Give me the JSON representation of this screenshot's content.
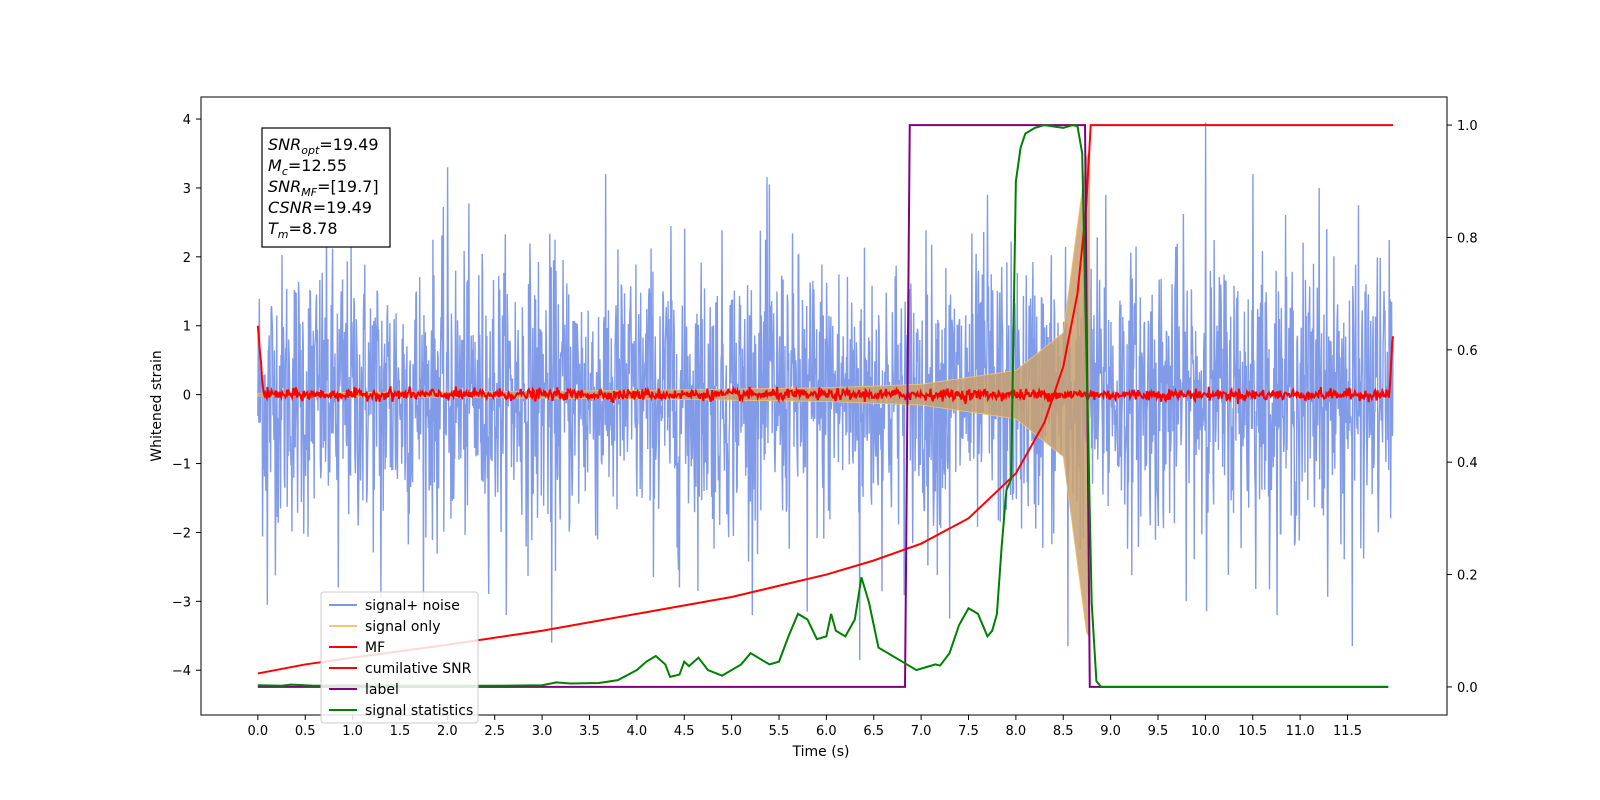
{
  "chart_data": {
    "type": "line",
    "title": "",
    "xlabel": "Time (s)",
    "ylabel": "Whitened strain",
    "xlim": [
      -0.6,
      12.55
    ],
    "ylim": [
      -4.65,
      4.32
    ],
    "y2lim": [
      -0.05,
      1.05
    ],
    "x_ticks": [
      "0.0",
      "0.5",
      "1.0",
      "1.5",
      "2.0",
      "2.5",
      "3.0",
      "3.5",
      "4.0",
      "4.5",
      "5.0",
      "5.5",
      "6.0",
      "6.5",
      "7.0",
      "7.5",
      "8.0",
      "8.5",
      "9.0",
      "9.5",
      "10.0",
      "10.5",
      "11.0",
      "11.5"
    ],
    "y_ticks": [
      "4",
      "3",
      "2",
      "1",
      "0",
      "−1",
      "−2",
      "−3",
      "−4"
    ],
    "y2_ticks": [
      "1.0",
      "0.8",
      "0.6",
      "0.4",
      "0.2",
      "0.0"
    ],
    "grid": false,
    "legend_position": "lower-left",
    "info_box": [
      {
        "sym": "SNR",
        "sub": "opt",
        "value": "=19.49"
      },
      {
        "sym": "M",
        "sub": "c",
        "value": "=12.55"
      },
      {
        "sym": "SNR",
        "sub": "MF",
        "value": "=[19.7]"
      },
      {
        "sym": "CSNR",
        "sub": "",
        "value": "=19.49"
      },
      {
        "sym": "T",
        "sub": "m",
        "value": "=8.78"
      }
    ],
    "series": [
      {
        "name": "signal+ noise",
        "color": "#7b96e8",
        "axis": "left",
        "noise_std": 1.0,
        "t_start": 0.0,
        "t_end": 11.98,
        "peaks": [
          [
            0.1,
            -3.05
          ],
          [
            0.85,
            -2.8
          ],
          [
            1.3,
            -2.95
          ],
          [
            2.0,
            3.3
          ],
          [
            3.1,
            -3.6
          ],
          [
            4.45,
            -2.8
          ],
          [
            5.4,
            3.05
          ],
          [
            5.8,
            -3.15
          ],
          [
            6.35,
            -3.85
          ],
          [
            7.3,
            -3.25
          ],
          [
            7.7,
            2.9
          ],
          [
            8.55,
            -3.65
          ],
          [
            8.95,
            2.9
          ],
          [
            10.0,
            3.95
          ],
          [
            10.5,
            3.2
          ],
          [
            11.55,
            -3.65
          ],
          [
            11.2,
            3.0
          ]
        ]
      },
      {
        "name": "signal only",
        "color": "#f5c46e",
        "axis": "left",
        "chirp_amplitude_at": [
          [
            0.0,
            0.02
          ],
          [
            4.0,
            0.06
          ],
          [
            6.0,
            0.1
          ],
          [
            7.0,
            0.15
          ],
          [
            8.0,
            0.35
          ],
          [
            8.5,
            0.9
          ],
          [
            8.75,
            3.5
          ]
        ],
        "merger_time": 8.78
      },
      {
        "name": "MF",
        "color": "#ff0000",
        "axis": "left",
        "noise_std": 0.04,
        "start_value": 1.0,
        "end_value": 0.88
      },
      {
        "name": "cumilative SNR",
        "color": "#ff0000",
        "axis": "right",
        "points": [
          [
            0.0,
            0.024
          ],
          [
            0.5,
            0.04
          ],
          [
            1.0,
            0.052
          ],
          [
            2.0,
            0.075
          ],
          [
            3.0,
            0.1
          ],
          [
            4.0,
            0.13
          ],
          [
            5.0,
            0.16
          ],
          [
            5.5,
            0.18
          ],
          [
            6.0,
            0.2
          ],
          [
            6.5,
            0.225
          ],
          [
            7.0,
            0.255
          ],
          [
            7.5,
            0.3
          ],
          [
            8.0,
            0.38
          ],
          [
            8.3,
            0.47
          ],
          [
            8.5,
            0.57
          ],
          [
            8.65,
            0.7
          ],
          [
            8.74,
            0.85
          ],
          [
            8.79,
            1.0
          ],
          [
            11.98,
            1.0
          ]
        ]
      },
      {
        "name": "label",
        "color": "#800080",
        "axis": "right",
        "points": [
          [
            0.0,
            0.0
          ],
          [
            6.83,
            0.0
          ],
          [
            6.88,
            1.0
          ],
          [
            8.73,
            1.0
          ],
          [
            8.78,
            0.0
          ],
          [
            11.93,
            0.0
          ]
        ]
      },
      {
        "name": "signal statistics",
        "color": "#008000",
        "axis": "right",
        "points": [
          [
            0.0,
            0.003
          ],
          [
            0.25,
            0.002
          ],
          [
            0.35,
            0.004
          ],
          [
            0.6,
            0.002
          ],
          [
            1.0,
            0.003
          ],
          [
            1.5,
            0.002
          ],
          [
            2.0,
            0.002
          ],
          [
            2.5,
            0.002
          ],
          [
            3.0,
            0.003
          ],
          [
            3.15,
            0.008
          ],
          [
            3.3,
            0.006
          ],
          [
            3.6,
            0.007
          ],
          [
            3.8,
            0.012
          ],
          [
            4.0,
            0.03
          ],
          [
            4.1,
            0.045
          ],
          [
            4.2,
            0.055
          ],
          [
            4.3,
            0.04
          ],
          [
            4.35,
            0.018
          ],
          [
            4.45,
            0.022
          ],
          [
            4.5,
            0.045
          ],
          [
            4.55,
            0.037
          ],
          [
            4.65,
            0.052
          ],
          [
            4.75,
            0.03
          ],
          [
            4.9,
            0.02
          ],
          [
            5.0,
            0.03
          ],
          [
            5.1,
            0.04
          ],
          [
            5.2,
            0.06
          ],
          [
            5.3,
            0.05
          ],
          [
            5.4,
            0.04
          ],
          [
            5.5,
            0.045
          ],
          [
            5.6,
            0.09
          ],
          [
            5.7,
            0.13
          ],
          [
            5.8,
            0.12
          ],
          [
            5.9,
            0.085
          ],
          [
            6.0,
            0.09
          ],
          [
            6.05,
            0.13
          ],
          [
            6.1,
            0.1
          ],
          [
            6.2,
            0.09
          ],
          [
            6.3,
            0.12
          ],
          [
            6.37,
            0.195
          ],
          [
            6.45,
            0.15
          ],
          [
            6.55,
            0.07
          ],
          [
            6.65,
            0.06
          ],
          [
            6.75,
            0.05
          ],
          [
            6.85,
            0.04
          ],
          [
            6.95,
            0.03
          ],
          [
            7.05,
            0.035
          ],
          [
            7.15,
            0.04
          ],
          [
            7.2,
            0.038
          ],
          [
            7.3,
            0.06
          ],
          [
            7.4,
            0.11
          ],
          [
            7.5,
            0.14
          ],
          [
            7.6,
            0.13
          ],
          [
            7.7,
            0.09
          ],
          [
            7.75,
            0.1
          ],
          [
            7.8,
            0.13
          ],
          [
            7.85,
            0.25
          ],
          [
            7.9,
            0.35
          ],
          [
            7.95,
            0.37
          ],
          [
            8.0,
            0.9
          ],
          [
            8.05,
            0.96
          ],
          [
            8.1,
            0.985
          ],
          [
            8.2,
            0.995
          ],
          [
            8.3,
            1.0
          ],
          [
            8.5,
            0.995
          ],
          [
            8.6,
            1.0
          ],
          [
            8.65,
            0.998
          ],
          [
            8.7,
            0.95
          ],
          [
            8.75,
            0.55
          ],
          [
            8.8,
            0.15
          ],
          [
            8.85,
            0.01
          ],
          [
            8.9,
            0.0
          ],
          [
            11.93,
            0.0
          ]
        ]
      }
    ]
  }
}
